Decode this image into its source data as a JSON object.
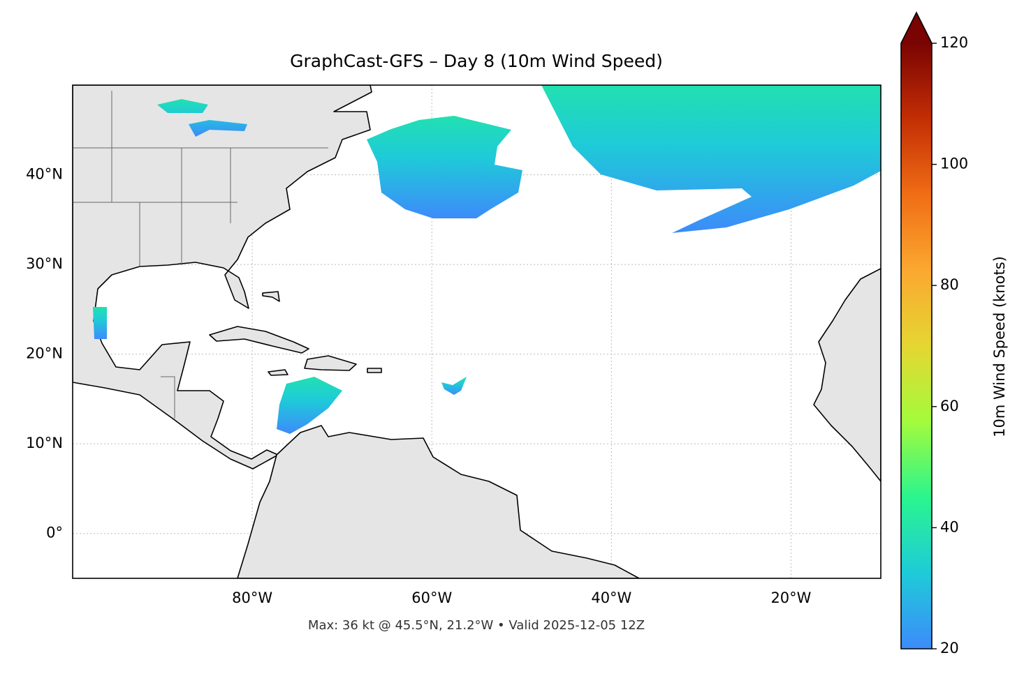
{
  "chart_data": {
    "type": "map",
    "title": "GraphCast-GFS – Day 8 (10m Wind Speed)",
    "footnote": "Max: 36 kt @ 45.5°N, 21.2°W • Valid 2025-12-05 12Z",
    "xlim": [
      -100,
      -10
    ],
    "ylim": [
      -5,
      50
    ],
    "xticks": [
      {
        "value": -80,
        "label": "80°W"
      },
      {
        "value": -60,
        "label": "60°W"
      },
      {
        "value": -40,
        "label": "40°W"
      },
      {
        "value": -20,
        "label": "20°W"
      }
    ],
    "yticks": [
      {
        "value": 0,
        "label": "0°"
      },
      {
        "value": 10,
        "label": "10°N"
      },
      {
        "value": 20,
        "label": "20°N"
      },
      {
        "value": 30,
        "label": "30°N"
      },
      {
        "value": 40,
        "label": "40°N"
      }
    ],
    "grid": true,
    "colorbar": {
      "label": "10m Wind Speed (knots)",
      "lim": [
        20,
        120
      ],
      "ticks": [
        20,
        40,
        60,
        80,
        100,
        120
      ],
      "colors": [
        "#3d8bfb",
        "#1ecbd8",
        "#2af58e",
        "#a3fb3c",
        "#e5d632",
        "#fba830",
        "#f06d15",
        "#c32e04",
        "#7a0403"
      ]
    }
  }
}
